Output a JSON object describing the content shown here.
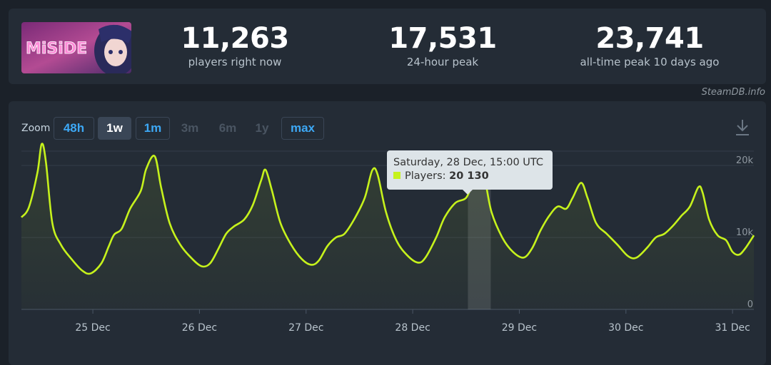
{
  "stats": [
    {
      "value": "11,263",
      "label": "players right now"
    },
    {
      "value": "17,531",
      "label": "24-hour peak"
    },
    {
      "value": "23,741",
      "label": "all-time peak 10 days ago"
    }
  ],
  "game_logo_text": "MiSiDE",
  "credit": "SteamDB.info",
  "zoom": {
    "label": "Zoom",
    "buttons": [
      "48h",
      "1w",
      "1m",
      "3m",
      "6m",
      "1y",
      "max"
    ],
    "active": "1w",
    "enabled": [
      "48h",
      "1w",
      "1m",
      "max"
    ]
  },
  "tooltip": {
    "date": "Saturday, 28 Dec, 15:00 UTC",
    "series_label": "Players:",
    "value_text": "20 130"
  },
  "chart_data": {
    "type": "line",
    "x_unit": "days (Dec)",
    "xlim": [
      24.33,
      31.2
    ],
    "ylim": [
      0,
      22000
    ],
    "y_ticks": [
      0,
      10000,
      20000
    ],
    "y_tick_labels": [
      "0",
      "10k",
      "20k"
    ],
    "x_ticks": [
      25,
      26,
      27,
      28,
      29,
      30,
      31
    ],
    "x_tick_labels": [
      "25 Dec",
      "26 Dec",
      "27 Dec",
      "28 Dec",
      "29 Dec",
      "30 Dec",
      "31 Dec"
    ],
    "highlight": {
      "x": 28.625,
      "y": 20130
    },
    "color": "#c6f21c",
    "grid": true,
    "points": [
      [
        24.33,
        12800
      ],
      [
        24.4,
        14200
      ],
      [
        24.48,
        19000
      ],
      [
        24.52,
        23000
      ],
      [
        24.56,
        20500
      ],
      [
        24.62,
        12000
      ],
      [
        24.7,
        9000
      ],
      [
        24.8,
        7000
      ],
      [
        24.9,
        5400
      ],
      [
        24.98,
        5000
      ],
      [
        25.08,
        6400
      ],
      [
        25.15,
        8800
      ],
      [
        25.2,
        10400
      ],
      [
        25.27,
        11200
      ],
      [
        25.35,
        14000
      ],
      [
        25.45,
        16500
      ],
      [
        25.5,
        19500
      ],
      [
        25.58,
        21300
      ],
      [
        25.64,
        17000
      ],
      [
        25.72,
        12000
      ],
      [
        25.82,
        9000
      ],
      [
        25.92,
        7200
      ],
      [
        26.02,
        6000
      ],
      [
        26.1,
        6400
      ],
      [
        26.18,
        8500
      ],
      [
        26.25,
        10500
      ],
      [
        26.32,
        11500
      ],
      [
        26.42,
        12500
      ],
      [
        26.5,
        14500
      ],
      [
        26.58,
        18000
      ],
      [
        26.62,
        19400
      ],
      [
        26.68,
        16500
      ],
      [
        26.76,
        12000
      ],
      [
        26.86,
        9000
      ],
      [
        26.96,
        7000
      ],
      [
        27.05,
        6200
      ],
      [
        27.12,
        6800
      ],
      [
        27.2,
        8800
      ],
      [
        27.28,
        10000
      ],
      [
        27.36,
        10500
      ],
      [
        27.45,
        12500
      ],
      [
        27.55,
        15500
      ],
      [
        27.62,
        19300
      ],
      [
        27.67,
        18800
      ],
      [
        27.75,
        13500
      ],
      [
        27.85,
        9500
      ],
      [
        27.95,
        7500
      ],
      [
        28.05,
        6500
      ],
      [
        28.12,
        7200
      ],
      [
        28.22,
        10000
      ],
      [
        28.3,
        12800
      ],
      [
        28.4,
        14800
      ],
      [
        28.5,
        15500
      ],
      [
        28.56,
        17500
      ],
      [
        28.625,
        20130
      ],
      [
        28.68,
        17800
      ],
      [
        28.74,
        13500
      ],
      [
        28.84,
        10000
      ],
      [
        28.94,
        8000
      ],
      [
        29.04,
        7200
      ],
      [
        29.12,
        8500
      ],
      [
        29.2,
        11000
      ],
      [
        29.28,
        13000
      ],
      [
        29.36,
        14300
      ],
      [
        29.44,
        14000
      ],
      [
        29.5,
        15500
      ],
      [
        29.58,
        17600
      ],
      [
        29.64,
        15500
      ],
      [
        29.72,
        12000
      ],
      [
        29.82,
        10500
      ],
      [
        29.92,
        9000
      ],
      [
        30.02,
        7400
      ],
      [
        30.1,
        7200
      ],
      [
        30.2,
        8600
      ],
      [
        30.28,
        10000
      ],
      [
        30.36,
        10500
      ],
      [
        30.44,
        11600
      ],
      [
        30.52,
        13000
      ],
      [
        30.6,
        14300
      ],
      [
        30.68,
        17000
      ],
      [
        30.72,
        16200
      ],
      [
        30.78,
        12500
      ],
      [
        30.86,
        10300
      ],
      [
        30.94,
        9600
      ],
      [
        31.0,
        8000
      ],
      [
        31.06,
        7600
      ],
      [
        31.12,
        8500
      ],
      [
        31.2,
        10300
      ]
    ]
  }
}
